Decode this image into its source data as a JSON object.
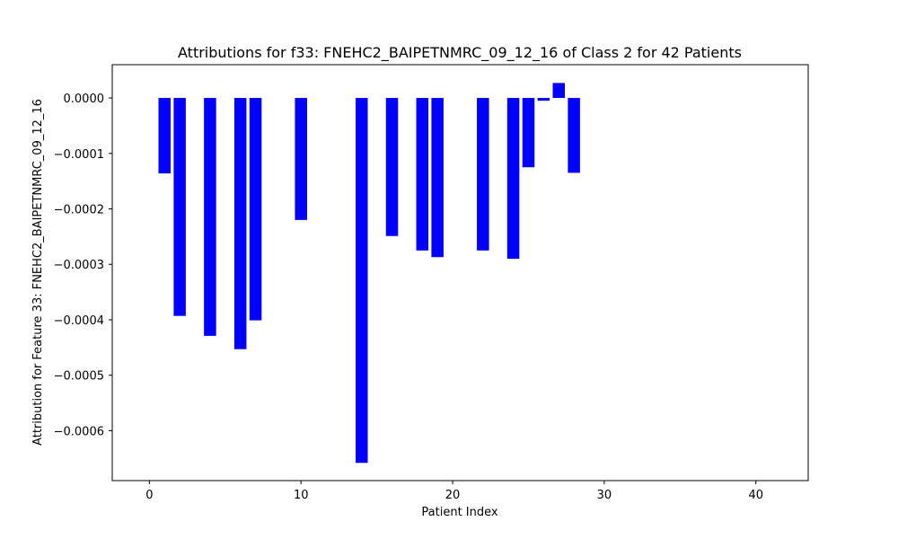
{
  "chart_data": {
    "type": "bar",
    "title": "Attributions for f33: FNEHC2_BAIPETNMRC_09_12_16 of Class 2 for 42 Patients",
    "xlabel": "Patient Index",
    "ylabel": "Attribution for Feature 33: FNEHC2_BAIPETNMRC_09_12_16",
    "xlim": [
      -2.45,
      43.45
    ],
    "ylim": [
      -0.00069,
      6e-05
    ],
    "xticks": [
      0,
      10,
      20,
      30,
      40
    ],
    "xtick_labels": [
      "0",
      "10",
      "20",
      "30",
      "40"
    ],
    "yticks": [
      0.0,
      -0.0001,
      -0.0002,
      -0.0003,
      -0.0004,
      -0.0005,
      -0.0006
    ],
    "ytick_labels": [
      "0.0000",
      "−0.0001",
      "−0.0002",
      "−0.0003",
      "−0.0004",
      "−0.0005",
      "−0.0006"
    ],
    "grid": false,
    "bar_color": "#0000ff",
    "x": [
      0,
      1,
      2,
      3,
      4,
      5,
      6,
      7,
      8,
      9,
      10,
      11,
      12,
      13,
      14,
      15,
      16,
      17,
      18,
      19,
      20,
      21,
      22,
      23,
      24,
      25,
      26,
      27,
      28,
      29,
      30,
      31,
      32,
      33,
      34,
      35,
      36,
      37,
      38,
      39,
      40,
      41
    ],
    "values": [
      0,
      -0.000136,
      -0.000393,
      0,
      -0.000429,
      0,
      -0.000453,
      -0.000401,
      0,
      0,
      -0.00022,
      0,
      0,
      0,
      -0.000658,
      0,
      -0.000249,
      0,
      -0.000275,
      -0.000287,
      0,
      0,
      -0.000275,
      0,
      -0.00029,
      -0.000125,
      -5e-06,
      2.7e-05,
      -0.000135,
      0,
      0,
      0,
      0,
      0,
      0,
      0,
      0,
      0,
      0,
      0,
      0,
      0
    ]
  }
}
